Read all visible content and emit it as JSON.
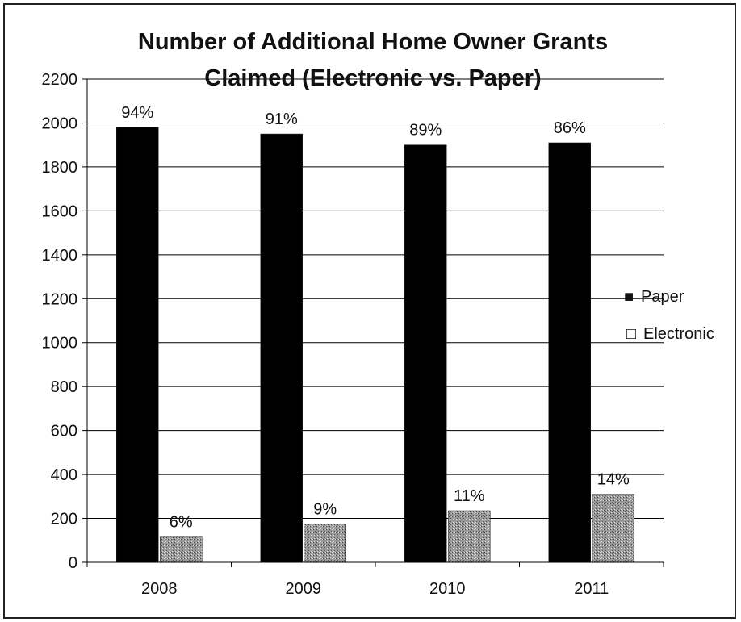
{
  "chart_data": {
    "type": "bar",
    "title_lines": [
      "Number of Additional Home Owner Grants",
      "Claimed (Electronic vs. Paper)"
    ],
    "categories": [
      "2008",
      "2009",
      "2010",
      "2011"
    ],
    "series": [
      {
        "name": "Paper",
        "values": [
          1980,
          1950,
          1900,
          1910
        ],
        "labels": [
          "94%",
          "91%",
          "89%",
          "86%"
        ],
        "color": "#000000"
      },
      {
        "name": "Electronic",
        "values": [
          115,
          175,
          235,
          310
        ],
        "labels": [
          "6%",
          "9%",
          "11%",
          "14%"
        ],
        "color": "#8a8a8a"
      }
    ],
    "ylim": [
      0,
      2200
    ],
    "yticks": [
      0,
      200,
      400,
      600,
      800,
      1000,
      1200,
      1400,
      1600,
      1800,
      2000,
      2200
    ],
    "grid": true,
    "legend_position": "right",
    "legend_markers": [
      "■",
      "□"
    ]
  }
}
